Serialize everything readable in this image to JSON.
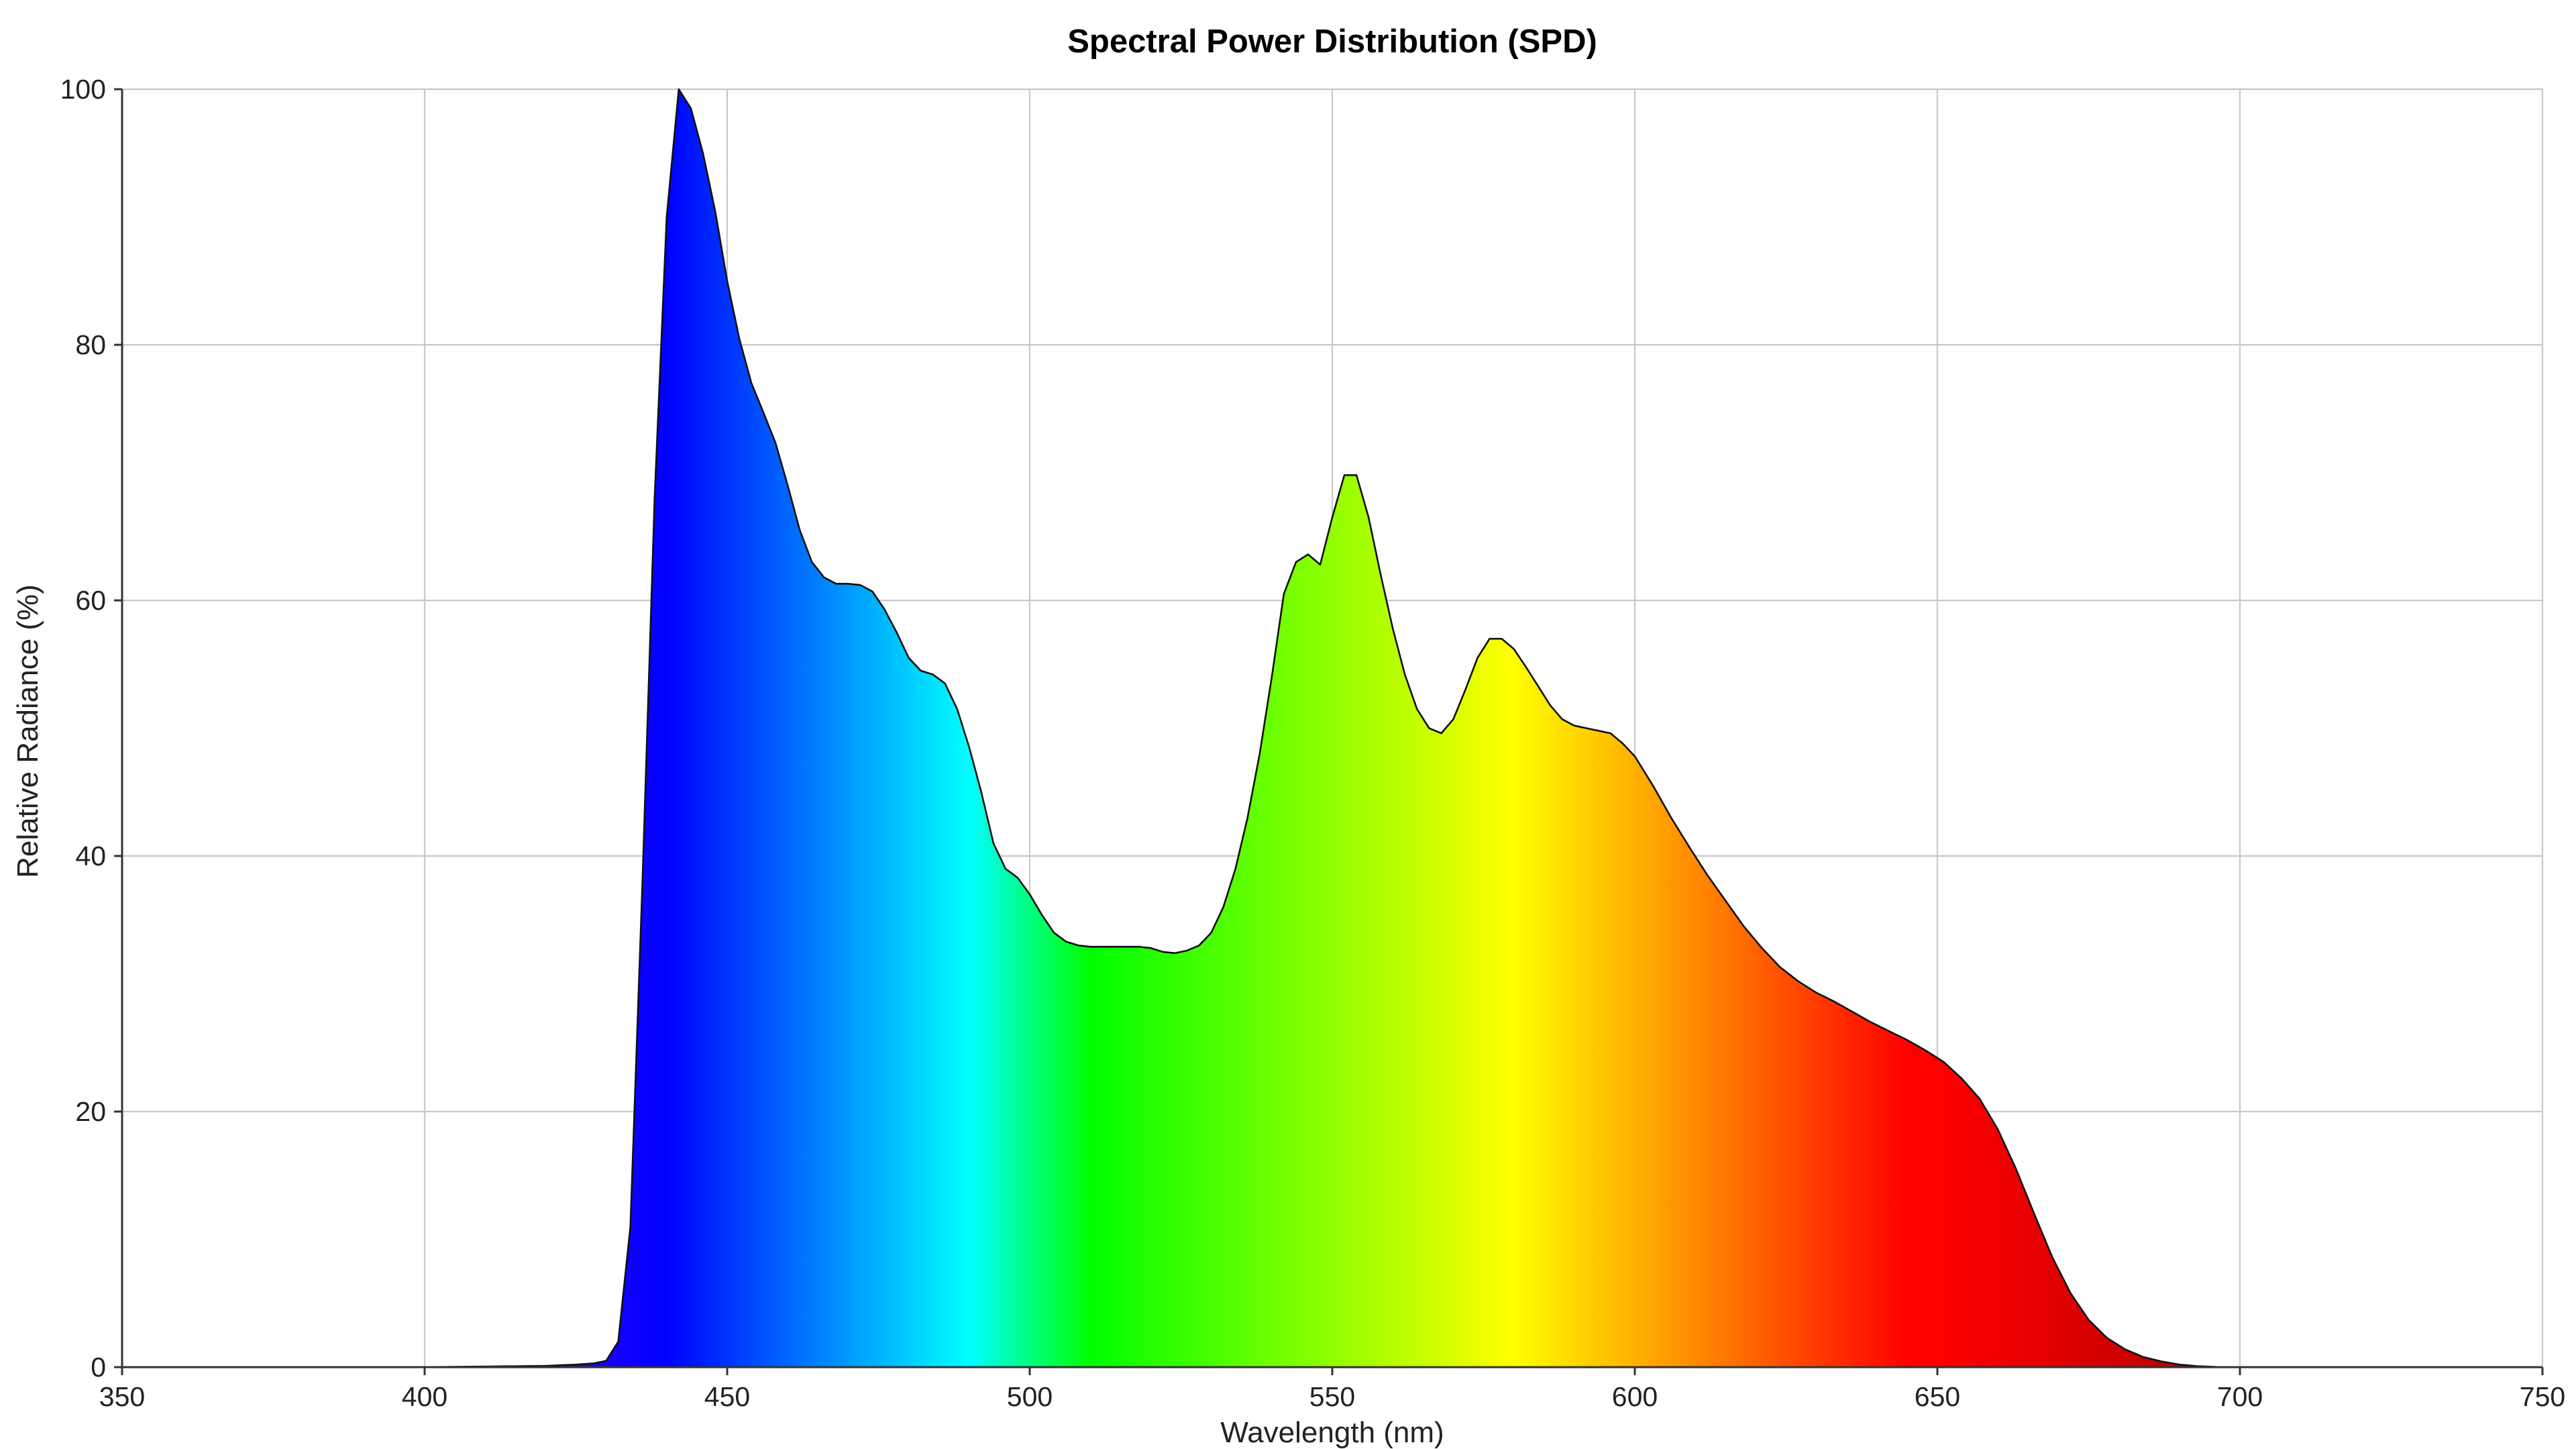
{
  "chart_data": {
    "type": "area",
    "title": "Spectral Power Distribution (SPD)",
    "xlabel": "Wavelength (nm)",
    "ylabel": "Relative Radiance (%)",
    "xlim": [
      350,
      750
    ],
    "ylim": [
      0,
      100
    ],
    "xticks": [
      350,
      400,
      450,
      500,
      550,
      600,
      650,
      700,
      750
    ],
    "yticks": [
      0,
      20,
      40,
      60,
      80,
      100
    ],
    "xtick_labels": [
      "350",
      "400",
      "450",
      "500",
      "550",
      "600",
      "650",
      "700",
      "750"
    ],
    "ytick_labels": [
      "0",
      "20",
      "40",
      "60",
      "80",
      "100"
    ],
    "grid": true,
    "fill": "visible-spectrum gradient by wavelength",
    "series": [
      {
        "x": [
          350,
          380,
          400,
          410,
          420,
          425,
          428,
          430,
          432,
          434,
          436,
          438,
          440,
          442,
          444,
          446,
          448,
          450,
          452,
          454,
          456,
          458,
          460,
          462,
          464,
          466,
          468,
          470,
          472,
          474,
          476,
          478,
          480,
          482,
          484,
          486,
          488,
          490,
          492,
          494,
          496,
          498,
          500,
          502,
          504,
          506,
          508,
          510,
          515,
          518,
          520,
          522,
          524,
          526,
          528,
          530,
          532,
          534,
          536,
          538,
          540,
          542,
          544,
          546,
          548,
          550,
          552,
          554,
          556,
          558,
          560,
          562,
          564,
          566,
          568,
          570,
          572,
          574,
          576,
          578,
          580,
          582,
          584,
          586,
          588,
          590,
          592,
          594,
          596,
          598,
          600,
          603,
          606,
          609,
          612,
          615,
          618,
          621,
          624,
          627,
          630,
          633,
          636,
          639,
          642,
          645,
          648,
          651,
          654,
          657,
          660,
          663,
          666,
          669,
          672,
          675,
          678,
          681,
          684,
          687,
          690,
          693,
          696,
          700,
          710,
          750
        ],
        "y": [
          0,
          0,
          0,
          0.05,
          0.1,
          0.2,
          0.3,
          0.5,
          2,
          11,
          38,
          68,
          90,
          100,
          98.5,
          95,
          90.5,
          85,
          80.5,
          77,
          74.7,
          72.3,
          69,
          65.5,
          63,
          61.8,
          61.3,
          61.3,
          61.2,
          60.7,
          59.3,
          57.5,
          55.5,
          54.5,
          54.2,
          53.5,
          51.5,
          48.5,
          45,
          41,
          39,
          38.3,
          37,
          35.4,
          34,
          33.3,
          33,
          32.9,
          32.9,
          32.9,
          32.8,
          32.5,
          32.4,
          32.6,
          33,
          34,
          36,
          39,
          43,
          48,
          54,
          60.5,
          63,
          63.6,
          62.8,
          66.5,
          69.8,
          69.8,
          66.5,
          62,
          57.8,
          54.2,
          51.5,
          50,
          49.6,
          50.7,
          53,
          55.5,
          57,
          57,
          56.2,
          54.8,
          53.3,
          51.8,
          50.7,
          50.2,
          50,
          49.8,
          49.6,
          48.8,
          47.8,
          45.5,
          43,
          40.7,
          38.5,
          36.5,
          34.5,
          32.8,
          31.3,
          30.2,
          29.3,
          28.6,
          27.8,
          27,
          26.3,
          25.6,
          24.8,
          23.9,
          22.6,
          21,
          18.6,
          15.5,
          12,
          8.6,
          5.8,
          3.7,
          2.3,
          1.4,
          0.8,
          0.45,
          0.2,
          0.08,
          0.02,
          0,
          0,
          0
        ]
      }
    ]
  }
}
